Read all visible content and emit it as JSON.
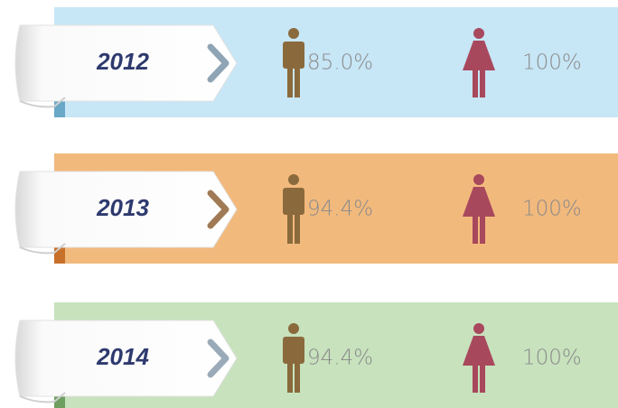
{
  "rows": [
    {
      "year": "2012",
      "male": "85.0%",
      "female": "100%"
    },
    {
      "year": "2013",
      "male": "94.4%",
      "female": "100%"
    },
    {
      "year": "2014",
      "male": "94.4%",
      "female": "100%"
    }
  ]
}
